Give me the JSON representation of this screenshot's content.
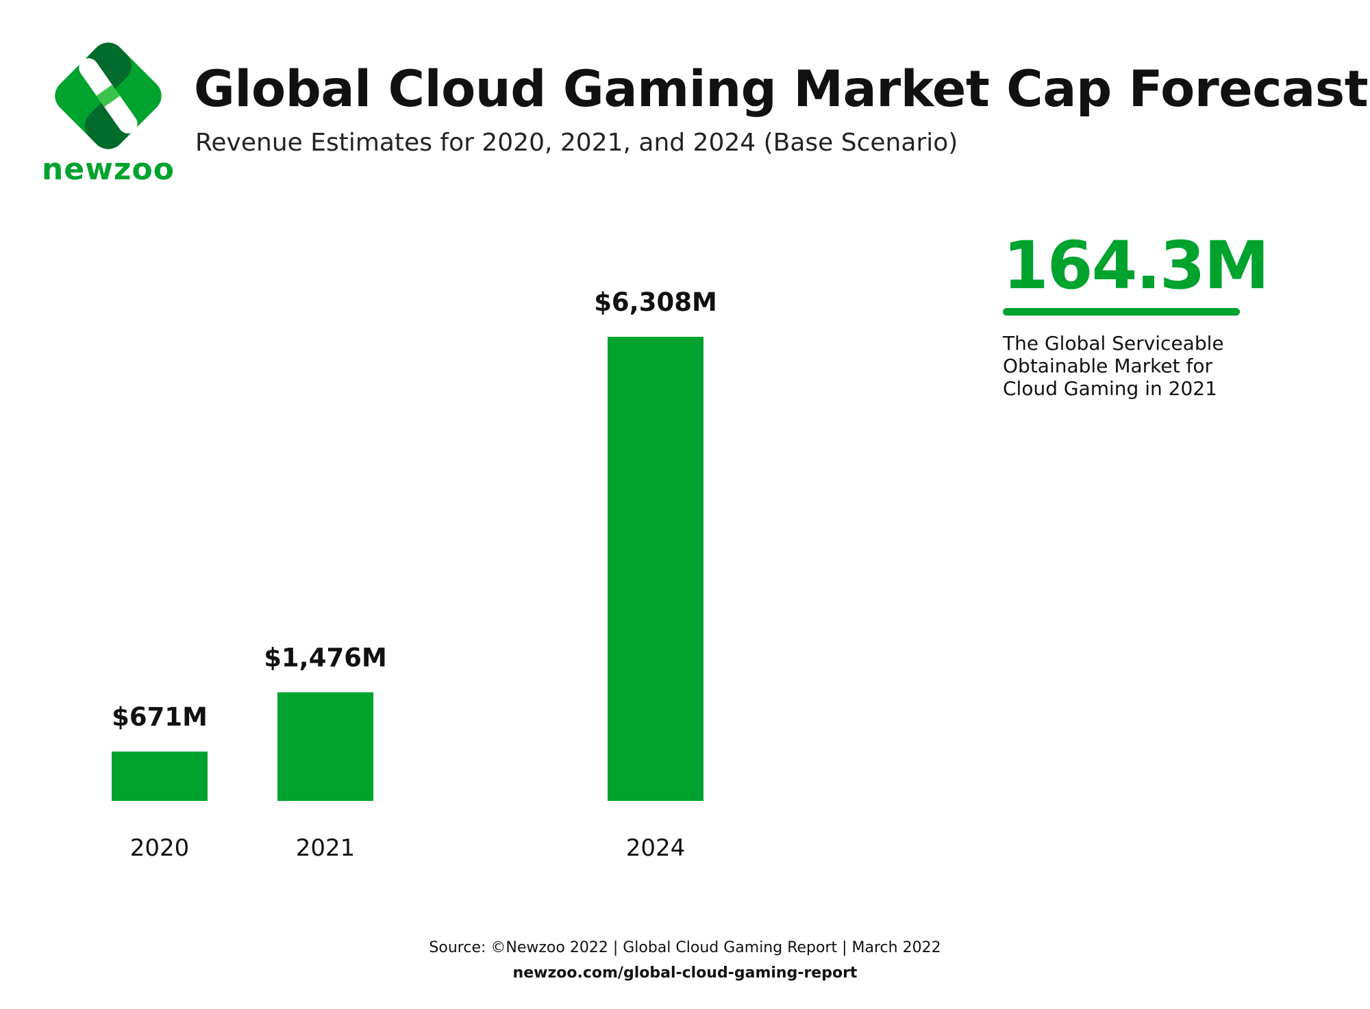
{
  "brand": {
    "name": "newzoo",
    "green": "#00a32e",
    "dark_green": "#006b2b",
    "light_green": "#3cc24a"
  },
  "header": {
    "title": "Global Cloud Gaming Market Cap Forecast",
    "subtitle": "Revenue Estimates for 2020, 2021, and 2024 (Base Scenario)"
  },
  "callout": {
    "value": "164.3M",
    "text": "The Global Serviceable Obtainable Market for Cloud Gaming in 2021"
  },
  "chart_data": {
    "type": "bar",
    "title": "Global Cloud Gaming Market Cap Forecast",
    "subtitle": "Revenue Estimates for 2020, 2021, and 2024 (Base Scenario)",
    "categories": [
      "2020",
      "2021",
      "2024"
    ],
    "values": [
      671,
      1476,
      6308
    ],
    "value_labels": [
      "$671M",
      "$1,476M",
      "$6,308M"
    ],
    "unit": "M",
    "xlabel": "",
    "ylabel": "",
    "grid": false,
    "legend": "none",
    "bar_color": "#00a32e"
  },
  "footer": {
    "source": "Source: ©Newzoo 2022 | Global Cloud Gaming Report | March 2022",
    "url": "newzoo.com/global-cloud-gaming-report"
  }
}
